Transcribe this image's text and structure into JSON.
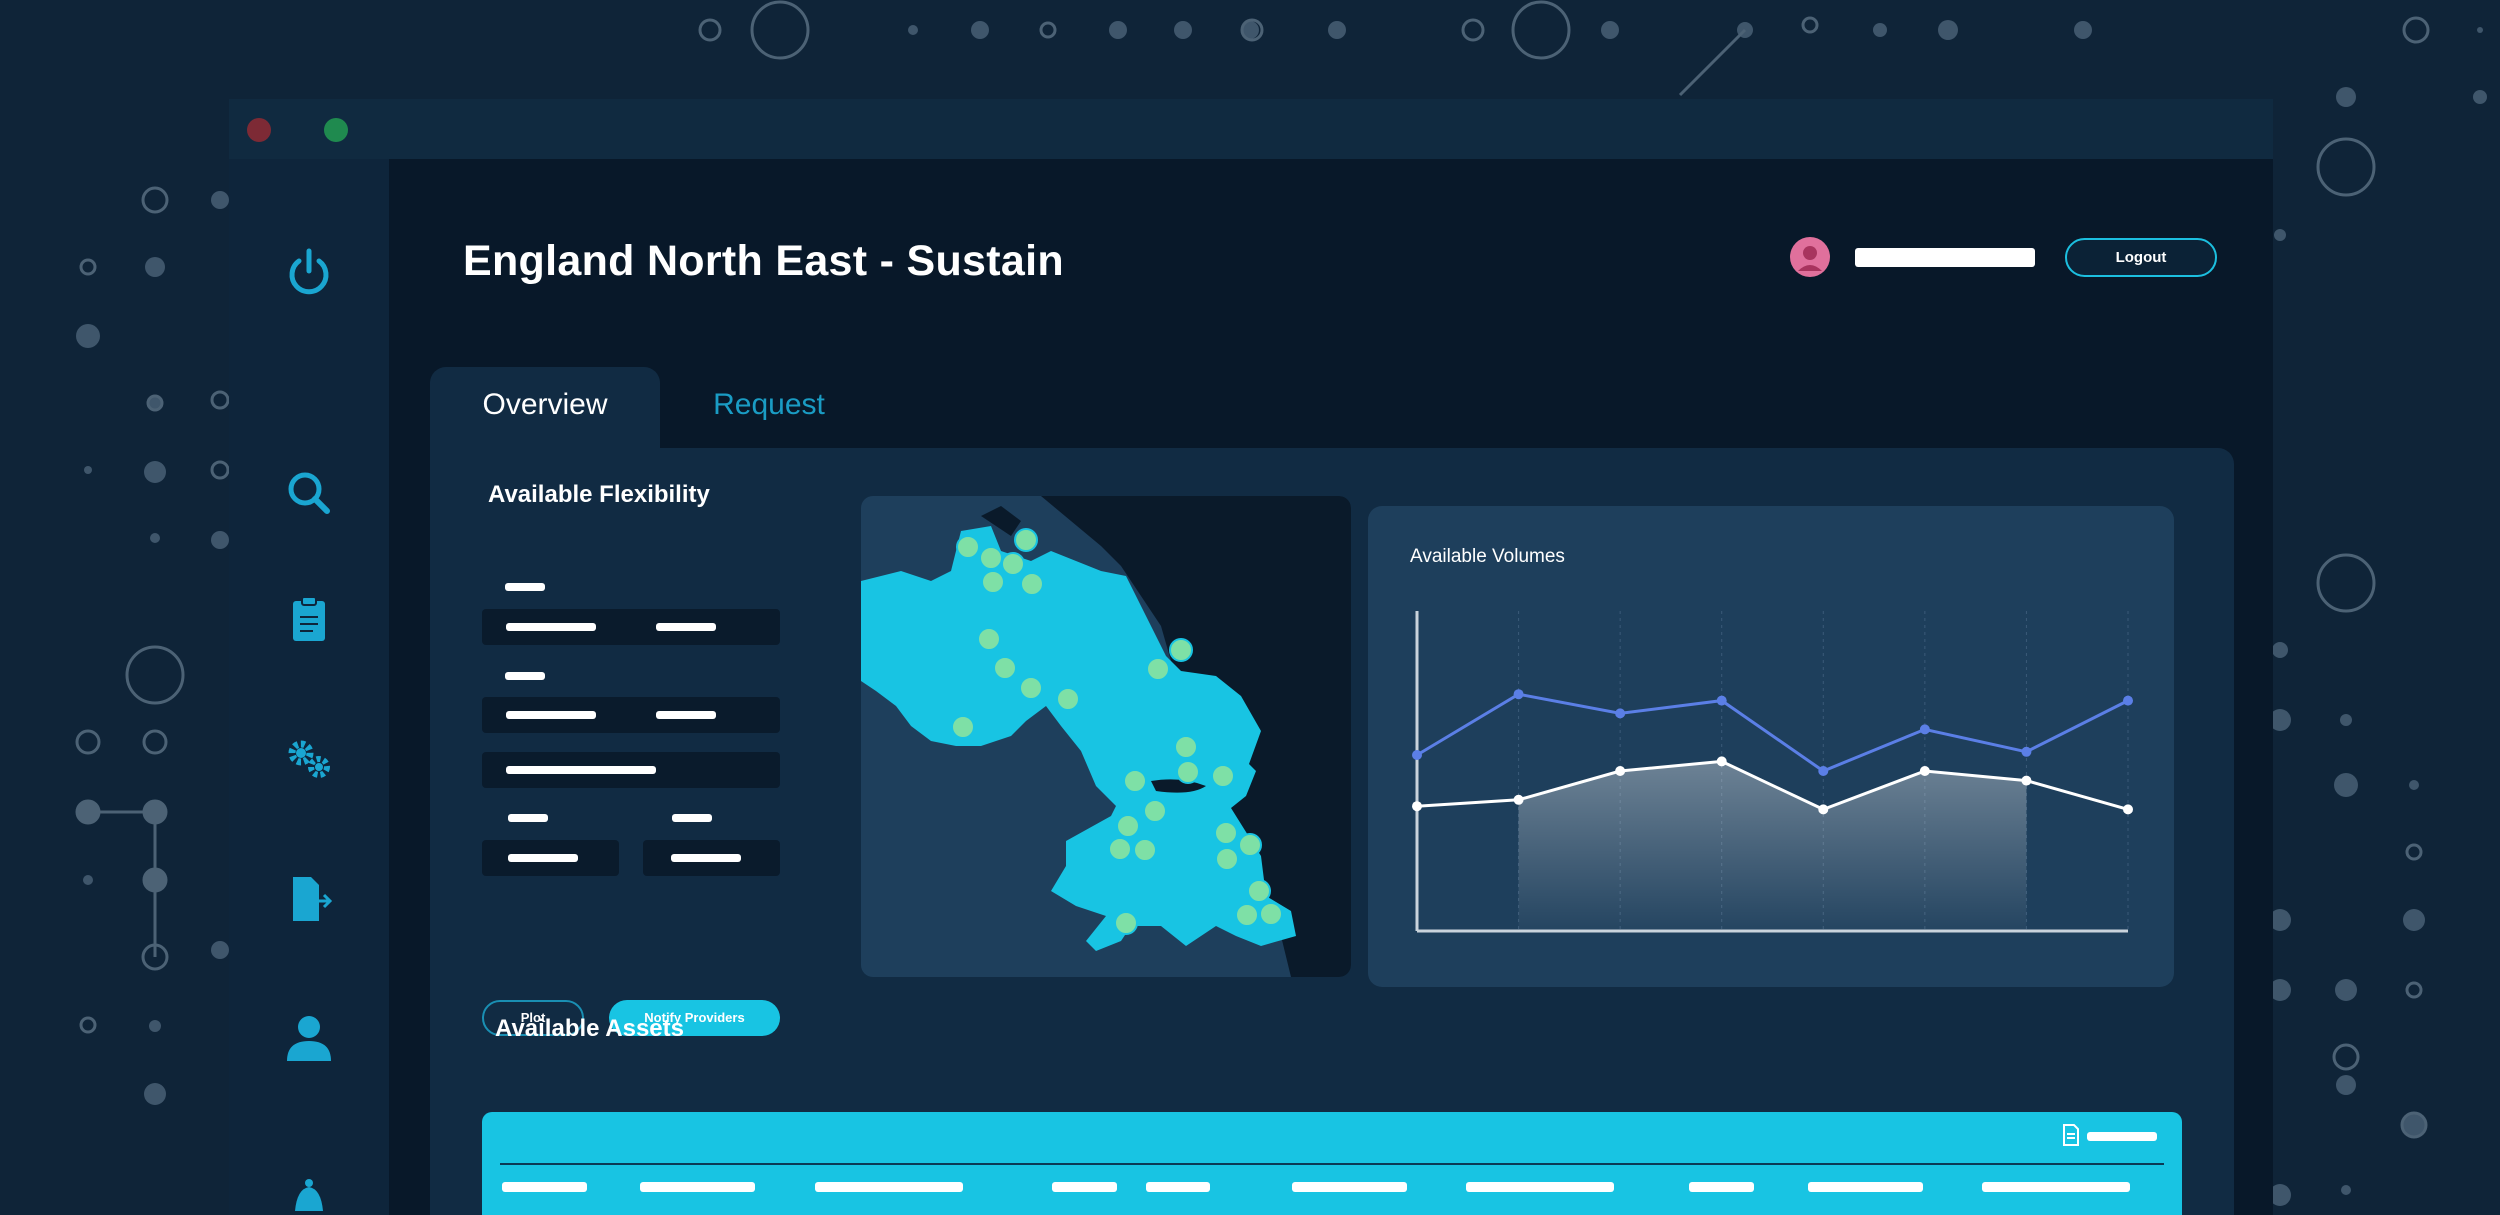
{
  "colors": {
    "background": "#0f2438",
    "window": "#081829",
    "sidebar": "#0e253b",
    "panel": "#112b43",
    "card": "#1e3f5c",
    "accent": "#18c4e3",
    "accent_dark": "#1a9cc4",
    "map_point": "#7ee0a6",
    "series_upper": "#5b7fe6",
    "series_lower": "#ffffff"
  },
  "window": {
    "traffic_lights": [
      "close-dot",
      "zoom-dot"
    ]
  },
  "sidebar": {
    "items": [
      {
        "icon": "power-icon"
      },
      {
        "icon": "search-icon"
      },
      {
        "icon": "clipboard-icon"
      },
      {
        "icon": "gears-icon"
      },
      {
        "icon": "file-export-icon"
      },
      {
        "icon": "user-icon"
      },
      {
        "icon": "bell-icon"
      }
    ]
  },
  "header": {
    "title": "England North East - Sustain",
    "logout_label": "Logout"
  },
  "tabs": [
    {
      "label": "Overview",
      "active": true
    },
    {
      "label": "Request",
      "active": false
    }
  ],
  "flexibility": {
    "title": "Available Flexibility",
    "plot_label": "Plot",
    "notify_label": "Notify Providers"
  },
  "volumes": {
    "title": "Available Volumes"
  },
  "assets": {
    "title": "Available Assets"
  },
  "chart_data": {
    "type": "line",
    "title": "Available Volumes",
    "x": [
      1,
      2,
      3,
      4,
      5,
      6,
      7,
      8
    ],
    "series": [
      {
        "values": [
          55,
          74,
          68,
          72,
          50,
          63,
          56,
          72
        ]
      },
      {
        "values": [
          39,
          41,
          50,
          53,
          38,
          50,
          47,
          38
        ]
      }
    ],
    "fill_between_index": [
      1,
      6
    ],
    "ylim": [
      0,
      100
    ],
    "grid": "vertical-dashed",
    "xlabel": "",
    "ylabel": ""
  }
}
